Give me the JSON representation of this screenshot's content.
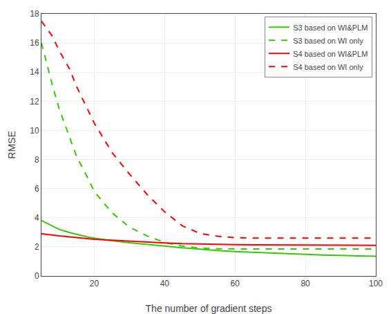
{
  "chart_data": {
    "type": "line",
    "xlabel": "The number of gradient steps",
    "ylabel": "RMSE",
    "xlim": [
      5,
      100
    ],
    "ylim": [
      0,
      18
    ],
    "xticks": [
      20,
      40,
      60,
      80,
      100
    ],
    "yticks": [
      0,
      2,
      4,
      6,
      8,
      10,
      12,
      14,
      16,
      18
    ],
    "grid": true,
    "legend": "upper right",
    "x": [
      5,
      8,
      10,
      13,
      15,
      18,
      20,
      25,
      30,
      35,
      40,
      45,
      50,
      55,
      60,
      65,
      70,
      75,
      80,
      85,
      90,
      95,
      100
    ],
    "series": [
      {
        "name": "S3 based on WI&PLM",
        "color": "#33CC00",
        "line_style": "solid",
        "values": [
          3.8,
          3.45,
          3.2,
          2.98,
          2.85,
          2.68,
          2.6,
          2.42,
          2.28,
          2.15,
          2.05,
          1.93,
          1.82,
          1.74,
          1.67,
          1.62,
          1.57,
          1.52,
          1.48,
          1.44,
          1.41,
          1.38,
          1.35
        ]
      },
      {
        "name": "S3 based on WI only",
        "color": "#33CC00",
        "line_style": "dashed",
        "values": [
          16.0,
          13.2,
          11.5,
          9.5,
          8.2,
          6.8,
          5.8,
          4.35,
          3.35,
          2.75,
          2.3,
          2.05,
          1.92,
          1.87,
          1.85,
          1.85,
          1.85,
          1.85,
          1.85,
          1.85,
          1.85,
          1.85,
          1.85
        ]
      },
      {
        "name": "S4 based on WI&PLM",
        "color": "#FF0000",
        "line_style": "solid",
        "values": [
          2.9,
          2.8,
          2.75,
          2.68,
          2.62,
          2.56,
          2.52,
          2.45,
          2.38,
          2.32,
          2.27,
          2.22,
          2.19,
          2.17,
          2.15,
          2.14,
          2.13,
          2.12,
          2.12,
          2.11,
          2.11,
          2.1,
          2.1
        ]
      },
      {
        "name": "S4 based on WI only",
        "color": "#FF0000",
        "line_style": "dashed",
        "values": [
          17.5,
          16.5,
          15.5,
          14.2,
          13.0,
          11.5,
          10.5,
          8.5,
          7.0,
          5.6,
          4.4,
          3.45,
          2.92,
          2.73,
          2.63,
          2.6,
          2.6,
          2.6,
          2.6,
          2.6,
          2.6,
          2.6,
          2.6
        ]
      }
    ]
  }
}
